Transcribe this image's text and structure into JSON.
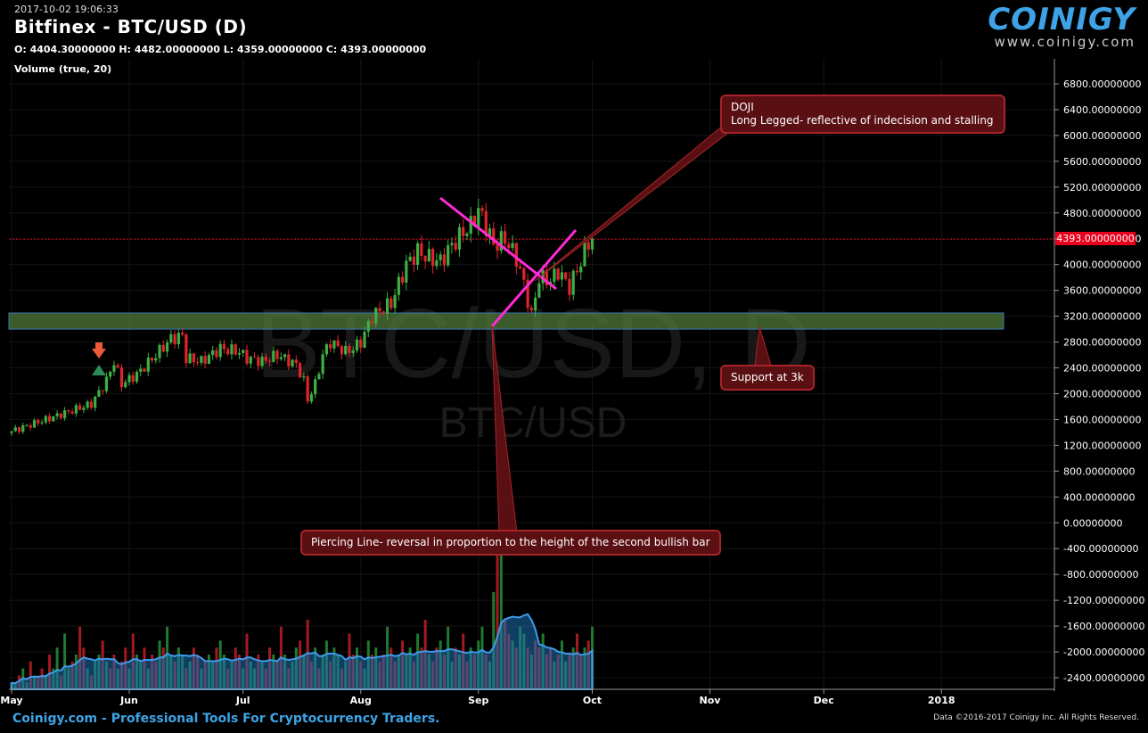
{
  "header": {
    "timestamp": "2017-10-02 19:06:33",
    "title": "Bitfinex - BTC/USD (D)",
    "ohlc": "O: 4404.30000000 H: 4482.00000000 L: 4359.00000000 C: 4393.00000000",
    "volume_label": "Volume (true, 20)"
  },
  "logo": {
    "text": "COINIGY",
    "url": "www.coinigy.com"
  },
  "watermark": {
    "big": "BTC/USD, D",
    "small": "BTC/USD"
  },
  "footer": {
    "left": "Coinigy.com - Professional Tools For Cryptocurrency Traders.",
    "right": "Data ©2016-2017 Coinigy Inc. All Rights Reserved."
  },
  "annotations": {
    "doji_title": "DOJI",
    "doji_text": "Long Legged- reflective of indecision and stalling",
    "support": "Support at 3k",
    "piercing": "Piercing Line- reversal in proportion to the height of the second bullish bar"
  },
  "colors": {
    "up": "#3cb043",
    "down": "#e0242c",
    "support_band": "#4f7a3a",
    "trendline": "#ff2bd6",
    "volume_area": "#1e6fb3",
    "price_line": "#e8001c",
    "callout": "#5a0f12"
  },
  "chart_data": {
    "type": "candlestick",
    "price_axis": {
      "min": -2600,
      "max": 7000,
      "ticks": [
        "6800.00000000",
        "6400.00000000",
        "6000.00000000",
        "5600.00000000",
        "5200.00000000",
        "4800.00000000",
        "4400.00000000",
        "4000.00000000",
        "3600.00000000",
        "3200.00000000",
        "2800.00000000",
        "2400.00000000",
        "2000.00000000",
        "1600.00000000",
        "1200.00000000",
        "800.00000000",
        "400.00000000",
        "0.00000000",
        "-400.00000000",
        "-800.00000000",
        "-1200.00000000",
        "-1600.00000000",
        "-2000.00000000",
        "-2400.00000000"
      ],
      "tick_values": [
        6800,
        6400,
        6000,
        5600,
        5200,
        4800,
        4400,
        4000,
        3600,
        3200,
        2800,
        2400,
        2000,
        1600,
        1200,
        800,
        400,
        0,
        -400,
        -800,
        -1200,
        -1600,
        -2000,
        -2400
      ]
    },
    "time_axis": {
      "labels": [
        "May",
        "Jun",
        "Jul",
        "Aug",
        "Sep",
        "Oct",
        "Nov",
        "Dec",
        "2018"
      ],
      "label_days": [
        0,
        31,
        61,
        92,
        123,
        153,
        184,
        214,
        245
      ]
    },
    "last_price": "4393.00000000",
    "last_price_value": 4393,
    "support_zone": [
      3000,
      3250
    ],
    "close_path": [
      [
        0,
        1420
      ],
      [
        7,
        1560
      ],
      [
        14,
        1700
      ],
      [
        21,
        1840
      ],
      [
        25,
        2200
      ],
      [
        27,
        2500
      ],
      [
        29,
        2150
      ],
      [
        33,
        2300
      ],
      [
        38,
        2600
      ],
      [
        42,
        2850
      ],
      [
        45,
        2900
      ],
      [
        46,
        2550
      ],
      [
        50,
        2500
      ],
      [
        55,
        2700
      ],
      [
        60,
        2650
      ],
      [
        62,
        2550
      ],
      [
        66,
        2500
      ],
      [
        70,
        2600
      ],
      [
        75,
        2450
      ],
      [
        77,
        2200
      ],
      [
        78,
        1900
      ],
      [
        80,
        2150
      ],
      [
        82,
        2600
      ],
      [
        84,
        2800
      ],
      [
        88,
        2650
      ],
      [
        90,
        2700
      ],
      [
        92,
        2800
      ],
      [
        95,
        3200
      ],
      [
        100,
        3400
      ],
      [
        104,
        4000
      ],
      [
        107,
        4200
      ],
      [
        110,
        4100
      ],
      [
        113,
        4050
      ],
      [
        116,
        4300
      ],
      [
        119,
        4500
      ],
      [
        121,
        4600
      ],
      [
        123,
        4850
      ],
      [
        125,
        4600
      ],
      [
        127,
        4300
      ],
      [
        130,
        4400
      ],
      [
        133,
        4100
      ],
      [
        135,
        3700
      ],
      [
        137,
        3200
      ],
      [
        139,
        3800
      ],
      [
        142,
        3750
      ],
      [
        144,
        3900
      ],
      [
        147,
        3650
      ],
      [
        150,
        4050
      ],
      [
        152,
        4350
      ],
      [
        153,
        4393
      ]
    ],
    "volume": {
      "baseline_value": -2600,
      "bars": [
        1,
        1,
        2,
        3,
        1,
        4,
        2,
        2,
        3,
        2,
        5,
        3,
        6,
        2,
        8,
        3,
        4,
        5,
        9,
        6,
        3,
        2,
        4,
        5,
        7,
        4,
        3,
        5,
        3,
        4,
        6,
        3,
        8,
        5,
        4,
        6,
        3,
        5,
        4,
        7,
        6,
        9,
        5,
        4,
        6,
        5,
        3,
        4,
        6,
        5,
        3,
        4,
        5,
        4,
        6,
        7,
        5,
        3,
        4,
        6,
        5,
        3,
        8,
        4,
        3,
        5,
        4,
        3,
        6,
        5,
        4,
        9,
        5,
        3,
        4,
        6,
        7,
        5,
        10,
        4,
        6,
        3,
        5,
        7,
        4,
        6,
        5,
        3,
        4,
        8,
        5,
        6,
        4,
        3,
        7,
        5,
        6,
        4,
        5,
        9,
        6,
        4,
        5,
        7,
        5,
        6,
        4,
        8,
        6,
        10,
        5,
        4,
        6,
        7,
        5,
        9,
        4,
        6,
        5,
        8,
        4,
        6,
        5,
        7,
        9,
        5,
        4,
        14,
        22,
        30,
        10,
        8,
        7,
        6,
        9,
        8,
        6,
        5,
        7,
        6,
        8,
        5,
        6,
        4,
        5,
        7,
        4,
        5,
        6,
        8,
        5,
        6,
        7,
        9
      ],
      "avg_start": 2,
      "avg_end": 4.5
    }
  }
}
